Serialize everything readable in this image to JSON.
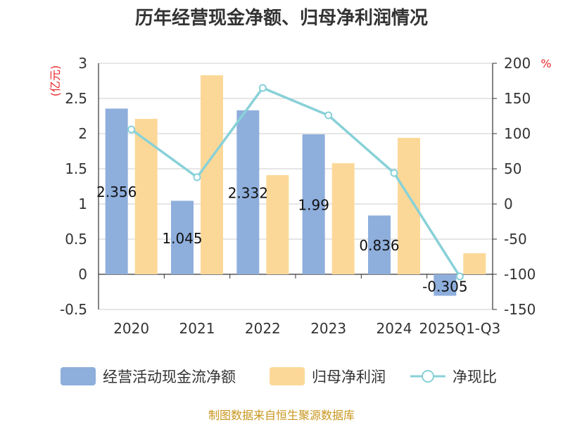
{
  "chart_data": {
    "type": "bar",
    "title": "历年经营现金净额、归母净利润情况",
    "categories": [
      "2020",
      "2021",
      "2022",
      "2023",
      "2024",
      "2025Q1-Q3"
    ],
    "series": [
      {
        "name": "经营活动现金流净额",
        "type": "bar",
        "axis": "left",
        "color": "#8eaedc",
        "values": [
          2.356,
          1.045,
          2.332,
          1.99,
          0.836,
          -0.305
        ],
        "labels": [
          "2.356",
          "1.045",
          "2.332",
          "1.99",
          "0.836",
          "-0.305"
        ]
      },
      {
        "name": "归母净利润",
        "type": "bar",
        "axis": "left",
        "color": "#fcd898",
        "values": [
          2.21,
          2.83,
          1.41,
          1.58,
          1.94,
          0.3
        ]
      },
      {
        "name": "净现比",
        "type": "line",
        "axis": "right",
        "color": "#88d1d8",
        "values": [
          106,
          38,
          165,
          126,
          44,
          -103
        ]
      }
    ],
    "y_left": {
      "unit": "(亿元)",
      "min": -0.5,
      "max": 3,
      "ticks": [
        "3",
        "2.5",
        "2",
        "1.5",
        "1",
        "0.5",
        "0",
        "-0.5"
      ],
      "tick_values": [
        3,
        2.5,
        2,
        1.5,
        1,
        0.5,
        0,
        -0.5
      ]
    },
    "y_right": {
      "unit": "%",
      "min": -150,
      "max": 200,
      "ticks": [
        "200",
        "150",
        "100",
        "50",
        "0",
        "-50",
        "-100",
        "-150"
      ],
      "tick_values": [
        200,
        150,
        100,
        50,
        0,
        -50,
        -100,
        -150
      ]
    },
    "legend_position": "bottom",
    "grid": true
  },
  "source": "制图数据来自恒生聚源数据库"
}
